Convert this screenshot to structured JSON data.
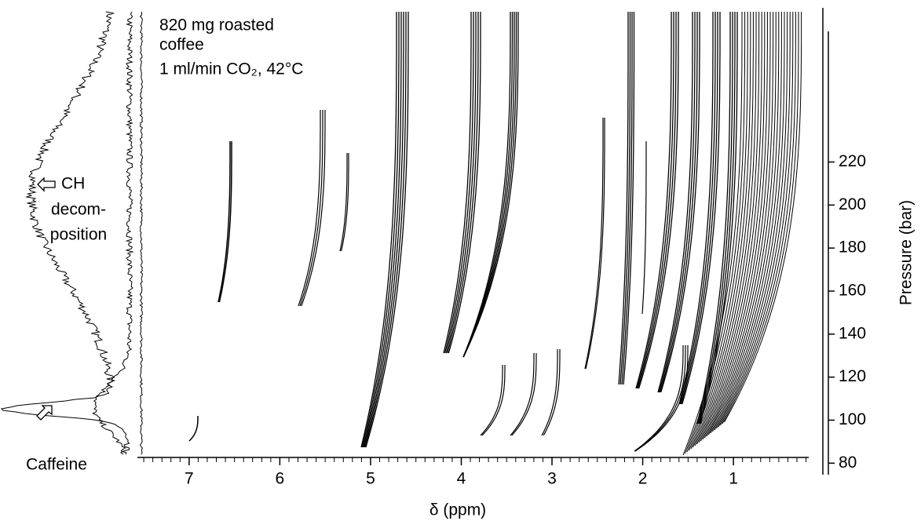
{
  "chart_data": {
    "type": "contour",
    "annotations": [
      "820 mg roasted",
      "coffee",
      "1 ml/min CO₂, 42°C"
    ],
    "side_labels": [
      "CH",
      "decom-",
      "position",
      "Caffeine"
    ],
    "x_label": "δ (ppm)",
    "y_label": "Pressure (bar)",
    "xlim": [
      7.57,
      0.17
    ],
    "ylim": [
      75,
      280
    ],
    "xticks": [
      7,
      6,
      5,
      4,
      3,
      2,
      1
    ],
    "xminorticks": [
      7.5,
      7.4,
      7.3,
      7.2,
      7.1,
      6.9,
      6.8,
      6.7,
      6.6,
      6.5,
      6.4,
      6.3,
      6.2,
      6.1,
      5.9,
      5.8,
      5.7,
      5.6,
      5.5,
      5.4,
      5.3,
      5.2,
      5.1,
      4.9,
      4.8,
      4.7,
      4.6,
      4.5,
      4.4,
      4.3,
      4.2,
      4.1,
      3.9,
      3.8,
      3.7,
      3.6,
      3.5,
      3.4,
      3.3,
      3.2,
      3.1,
      2.9,
      2.8,
      2.7,
      2.6,
      2.5,
      2.4,
      2.3,
      2.2,
      2.1,
      1.9,
      1.8,
      1.7,
      1.6,
      1.5,
      1.4,
      1.3,
      1.2,
      1.1,
      0.9,
      0.8,
      0.7,
      0.6,
      0.5,
      0.4,
      0.3,
      0.2
    ],
    "yticks": [
      80,
      100,
      120,
      140,
      160,
      180,
      200,
      220
    ],
    "color": "#000000"
  }
}
